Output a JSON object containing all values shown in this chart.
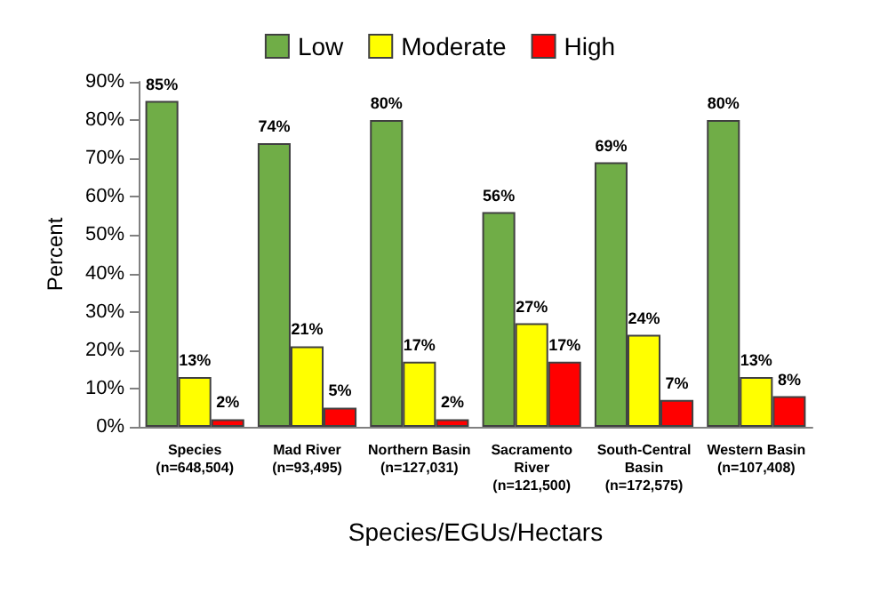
{
  "chart_data": {
    "type": "bar",
    "xlabel": "Species/EGUs/Hectars",
    "ylabel": "Percent",
    "categories": [
      "Species\n(n=648,504)",
      "Mad River\n(n=93,495)",
      "Northern Basin\n(n=127,031)",
      "Sacramento\nRiver\n(n=121,500)",
      "South-Central\nBasin\n(n=172,575)",
      "Western Basin\n(n=107,408)"
    ],
    "series": [
      {
        "name": "Low",
        "color": "#70ad47",
        "values": [
          85,
          74,
          80,
          56,
          69,
          80
        ],
        "value_labels": [
          "85%",
          "74%",
          "80%",
          "56%",
          "69%",
          "80%"
        ]
      },
      {
        "name": "Moderate",
        "color": "#ffff00",
        "values": [
          13,
          21,
          17,
          27,
          24,
          13
        ],
        "value_labels": [
          "13%",
          "21%",
          "17%",
          "27%",
          "24%",
          "13%"
        ]
      },
      {
        "name": "High",
        "color": "#ff0000",
        "values": [
          2,
          5,
          2,
          17,
          7,
          8
        ],
        "value_labels": [
          "2%",
          "5%",
          "2%",
          "17%",
          "7%",
          "8%"
        ]
      }
    ],
    "ylim": [
      0,
      90
    ],
    "yticks": [
      {
        "value": 0,
        "label": "0%"
      },
      {
        "value": 10,
        "label": "10%"
      },
      {
        "value": 20,
        "label": "20%"
      },
      {
        "value": 30,
        "label": "30%"
      },
      {
        "value": 40,
        "label": "40%"
      },
      {
        "value": 50,
        "label": "50%"
      },
      {
        "value": 60,
        "label": "60%"
      },
      {
        "value": 70,
        "label": "70%"
      },
      {
        "value": 80,
        "label": "80%"
      },
      {
        "value": 90,
        "label": "90%"
      }
    ],
    "grid": false,
    "legend": "top"
  }
}
